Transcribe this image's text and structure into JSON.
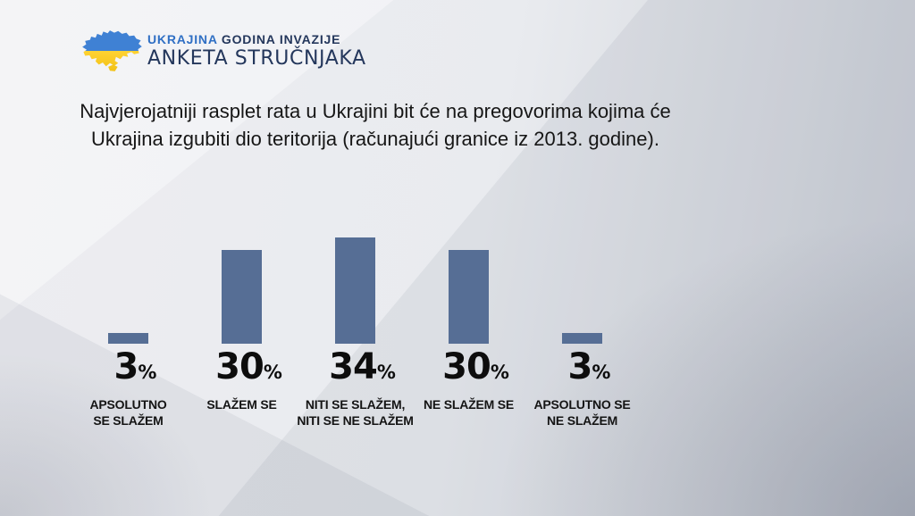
{
  "header": {
    "title_part1": "UKRAJINA",
    "title_part2": "GODINA INVAZIJE",
    "subtitle": "ANKETA STRUČNJAKA",
    "colors": {
      "accent_blue": "#2f6fc4",
      "navy": "#24375c",
      "flag_blue": "#3f81d4",
      "flag_yellow": "#fccf1f"
    }
  },
  "question": {
    "line1": "Najvjerojatniji rasplet rata u Ukrajini bit će na pregovorima kojima će",
    "line2": "Ukrajina izgubiti dio teritorija (računajući granice iz 2013. godine)."
  },
  "chart_data": {
    "type": "bar",
    "title": "Najvjerojatniji rasplet rata u Ukrajini bit će na pregovorima kojima će Ukrajina izgubiti dio teritorija (računajući granice iz 2013. godine).",
    "categories": [
      "APSOLUTNO SE SLAŽEM",
      "SLAŽEM SE",
      "NITI SE SLAŽEM, NITI SE NE SLAŽEM",
      "NE SLAŽEM SE",
      "APSOLUTNO SE NE SLAŽEM"
    ],
    "category_label_lines": [
      [
        "APSOLUTNO",
        "SE SLAŽEM"
      ],
      [
        "SLAŽEM SE"
      ],
      [
        "NITI SE SLAŽEM,",
        "NITI SE NE SLAŽEM"
      ],
      [
        "NE SLAŽEM SE"
      ],
      [
        "APSOLUTNO SE",
        "NE SLAŽEM"
      ]
    ],
    "values": [
      3,
      30,
      34,
      30,
      3
    ],
    "value_suffix": "%",
    "bar_color": "#566e95",
    "value_label_color": "#0d0d0d",
    "ylim": [
      0,
      40
    ],
    "grid": false,
    "legend": false,
    "value_labels_position": "below-bars"
  }
}
